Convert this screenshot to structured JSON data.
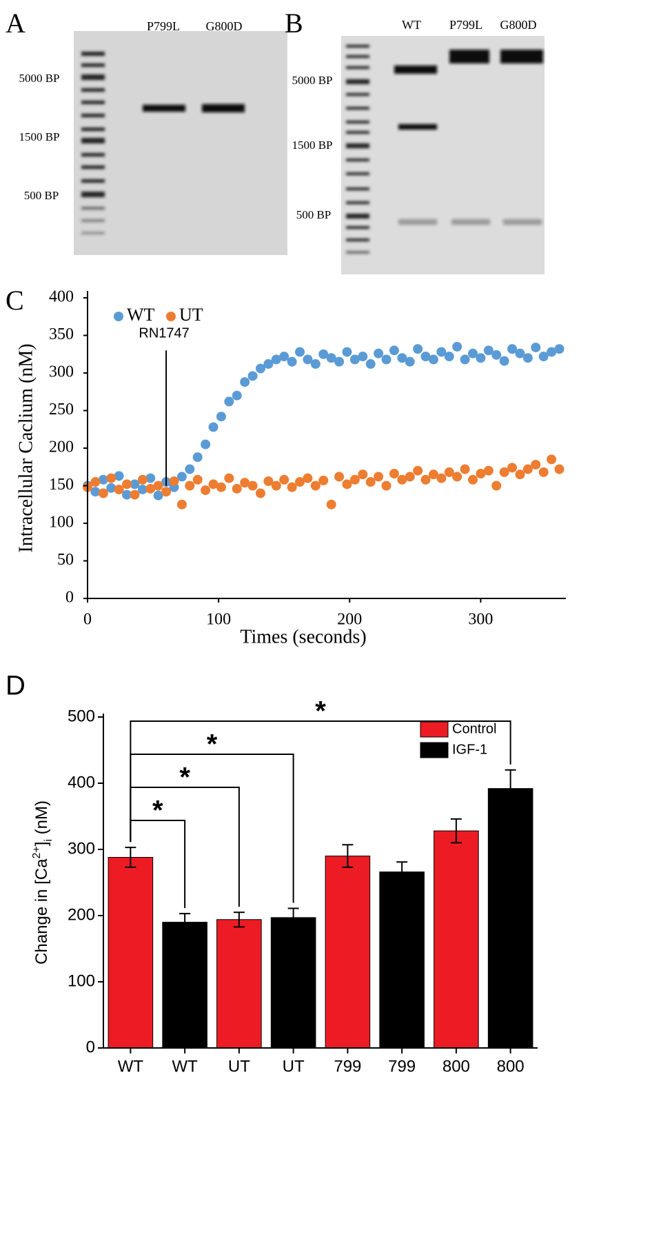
{
  "gels": [
    {
      "label": "A",
      "lanes": [
        "P799L",
        "G800D"
      ],
      "markers": [
        "5000 BP",
        "1500 BP",
        "500 BP"
      ]
    },
    {
      "label": "B",
      "lanes": [
        "WT",
        "P799L",
        "G800D"
      ],
      "markers": [
        "5000 BP",
        "1500 BP",
        "500 BP"
      ]
    }
  ],
  "chart_data": [
    {
      "type": "scatter",
      "panel_label": "C",
      "xlabel": "Times (seconds)",
      "ylabel": "Intracellular Caclium (nM)",
      "xlim": [
        0,
        365
      ],
      "ylim": [
        0,
        400
      ],
      "xticks": [
        0,
        100,
        200,
        300
      ],
      "yticks": [
        0,
        50,
        100,
        150,
        200,
        250,
        300,
        350,
        400
      ],
      "annotation": {
        "text": "RN1747",
        "x": 60
      },
      "x": [
        0,
        6,
        12,
        18,
        24,
        30,
        36,
        42,
        48,
        54,
        60,
        66,
        72,
        78,
        84,
        90,
        96,
        102,
        108,
        114,
        120,
        126,
        132,
        138,
        144,
        150,
        156,
        162,
        168,
        174,
        180,
        186,
        192,
        198,
        204,
        210,
        216,
        222,
        228,
        234,
        240,
        246,
        252,
        258,
        264,
        270,
        276,
        282,
        288,
        294,
        300,
        306,
        312,
        318,
        324,
        330,
        336,
        342,
        348,
        354,
        360
      ],
      "series": [
        {
          "name": "WT",
          "color": "#5b9bd5",
          "values": [
            150,
            142,
            158,
            147,
            163,
            138,
            152,
            145,
            160,
            137,
            155,
            148,
            162,
            172,
            188,
            205,
            228,
            242,
            262,
            270,
            288,
            296,
            306,
            312,
            318,
            322,
            315,
            328,
            318,
            312,
            325,
            320,
            315,
            328,
            318,
            322,
            312,
            326,
            318,
            330,
            320,
            315,
            332,
            322,
            318,
            328,
            322,
            335,
            318,
            326,
            320,
            330,
            324,
            316,
            332,
            326,
            320,
            334,
            322,
            328,
            332
          ]
        },
        {
          "name": "UT",
          "color": "#ed7d31",
          "values": [
            148,
            155,
            140,
            160,
            145,
            152,
            138,
            158,
            146,
            150,
            142,
            156,
            125,
            150,
            158,
            144,
            152,
            148,
            160,
            146,
            154,
            150,
            140,
            156,
            150,
            158,
            148,
            155,
            160,
            150,
            157,
            125,
            162,
            152,
            158,
            165,
            155,
            162,
            150,
            166,
            158,
            162,
            170,
            158,
            165,
            160,
            168,
            162,
            172,
            158,
            166,
            170,
            150,
            168,
            174,
            165,
            172,
            178,
            168,
            185,
            172
          ]
        }
      ]
    },
    {
      "type": "bar",
      "panel_label": "D",
      "ylabel_parts": [
        "Change in [Ca",
        "2+",
        "]",
        "i",
        " (nM)"
      ],
      "categories": [
        "WT",
        "WT",
        "UT",
        "UT",
        "799",
        "799",
        "800",
        "800"
      ],
      "ylim": [
        0,
        500
      ],
      "yticks": [
        0,
        100,
        200,
        300,
        400,
        500
      ],
      "series": [
        {
          "name": "Control",
          "color": "#ed1c24",
          "values": [
            288,
            null,
            194,
            null,
            290,
            null,
            328,
            null
          ],
          "errors": [
            15,
            null,
            11,
            null,
            17,
            null,
            18,
            null
          ]
        },
        {
          "name": "IGF-1",
          "color": "#000000",
          "values": [
            null,
            190,
            null,
            197,
            null,
            266,
            null,
            392
          ],
          "errors": [
            null,
            13,
            null,
            14,
            null,
            15,
            null,
            28
          ]
        }
      ],
      "brackets": [
        {
          "label": "*",
          "categories": [
            0,
            1
          ]
        },
        {
          "label": "*",
          "categories": [
            0,
            2
          ]
        },
        {
          "label": "*",
          "categories": [
            0,
            3
          ]
        },
        {
          "label": "*",
          "categories": [
            0,
            7
          ]
        }
      ]
    }
  ]
}
